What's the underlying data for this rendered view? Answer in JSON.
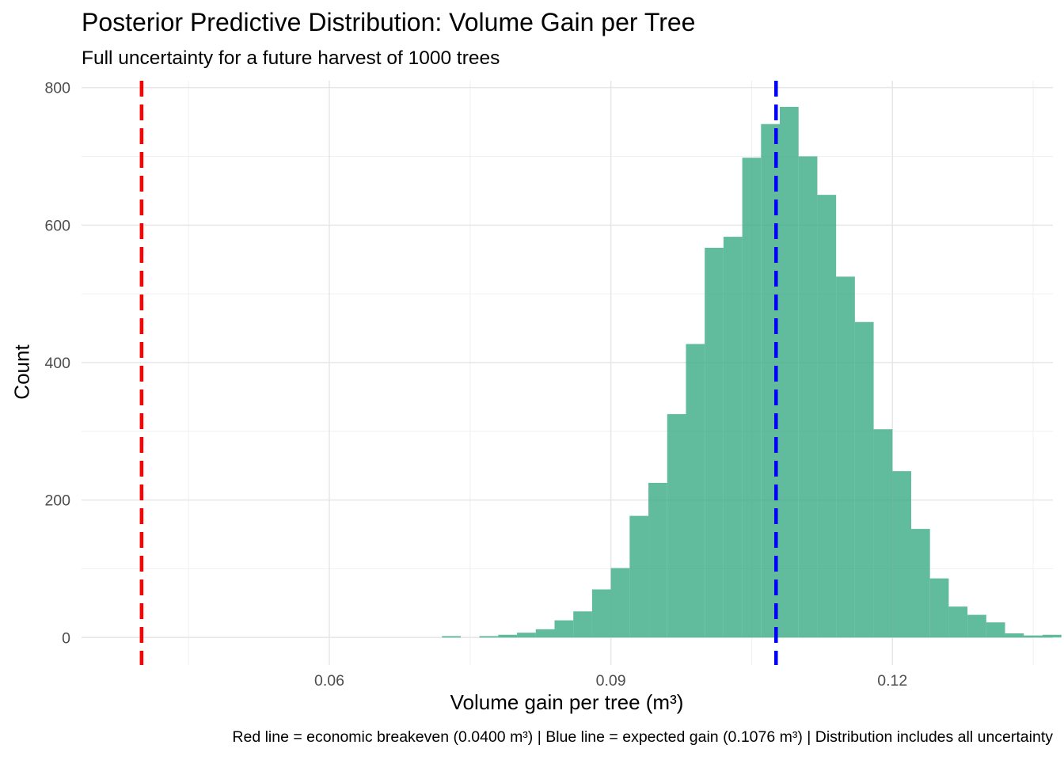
{
  "chart_data": {
    "type": "bar",
    "title": "Posterior Predictive Distribution: Volume Gain per Tree",
    "subtitle": "Full uncertainty for a future harvest of 1000 trees",
    "xlabel": "Volume gain per tree (m³)",
    "ylabel": "Count",
    "caption": "Red line = economic breakeven (0.0400 m³) | Blue line = expected gain (0.1076 m³) | Distribution includes all uncertainty",
    "xlim": [
      0.0336,
      0.1371
    ],
    "ylim": [
      -40,
      810
    ],
    "x_ticks": [
      {
        "value": 0.06,
        "label": "0.06"
      },
      {
        "value": 0.09,
        "label": "0.09"
      },
      {
        "value": 0.12,
        "label": "0.12"
      }
    ],
    "y_ticks": [
      {
        "value": 0,
        "label": "0"
      },
      {
        "value": 200,
        "label": "200"
      },
      {
        "value": 400,
        "label": "400"
      },
      {
        "value": 600,
        "label": "600"
      },
      {
        "value": 800,
        "label": "800"
      }
    ],
    "grid": true,
    "bin_width": 0.002,
    "bins": [
      {
        "x": 0.073,
        "count": 2
      },
      {
        "x": 0.075,
        "count": 0
      },
      {
        "x": 0.077,
        "count": 2
      },
      {
        "x": 0.079,
        "count": 4
      },
      {
        "x": 0.081,
        "count": 7
      },
      {
        "x": 0.083,
        "count": 12
      },
      {
        "x": 0.085,
        "count": 25
      },
      {
        "x": 0.087,
        "count": 38
      },
      {
        "x": 0.089,
        "count": 70
      },
      {
        "x": 0.091,
        "count": 101
      },
      {
        "x": 0.093,
        "count": 177
      },
      {
        "x": 0.095,
        "count": 225
      },
      {
        "x": 0.097,
        "count": 325
      },
      {
        "x": 0.099,
        "count": 427
      },
      {
        "x": 0.101,
        "count": 567
      },
      {
        "x": 0.103,
        "count": 583
      },
      {
        "x": 0.105,
        "count": 698
      },
      {
        "x": 0.107,
        "count": 747
      },
      {
        "x": 0.109,
        "count": 772
      },
      {
        "x": 0.111,
        "count": 700
      },
      {
        "x": 0.113,
        "count": 644
      },
      {
        "x": 0.115,
        "count": 525
      },
      {
        "x": 0.117,
        "count": 459
      },
      {
        "x": 0.119,
        "count": 303
      },
      {
        "x": 0.121,
        "count": 242
      },
      {
        "x": 0.123,
        "count": 158
      },
      {
        "x": 0.125,
        "count": 86
      },
      {
        "x": 0.127,
        "count": 45
      },
      {
        "x": 0.129,
        "count": 33
      },
      {
        "x": 0.131,
        "count": 22
      },
      {
        "x": 0.133,
        "count": 6
      },
      {
        "x": 0.135,
        "count": 3
      },
      {
        "x": 0.137,
        "count": 4
      }
    ],
    "bar_color": "#3aaa85",
    "reference_lines": [
      {
        "name": "economic breakeven",
        "x": 0.04,
        "color": "#ff0000",
        "style": "dashed"
      },
      {
        "name": "expected gain",
        "x": 0.1076,
        "color": "#0000ff",
        "style": "dashed"
      }
    ]
  }
}
